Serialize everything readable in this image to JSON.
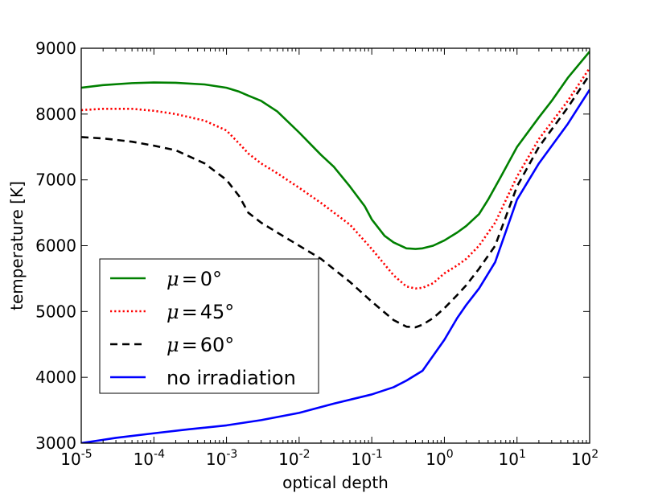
{
  "chart_data": {
    "type": "line",
    "xscale": "log",
    "xlabel": "optical depth",
    "ylabel": "temperature [K]",
    "xlim": [
      1e-05,
      100
    ],
    "ylim": [
      3000,
      9000
    ],
    "x_ticks": [
      {
        "value": 1e-05,
        "base": "10",
        "exp": "-5"
      },
      {
        "value": 0.0001,
        "base": "10",
        "exp": "-4"
      },
      {
        "value": 0.001,
        "base": "10",
        "exp": "-3"
      },
      {
        "value": 0.01,
        "base": "10",
        "exp": "-2"
      },
      {
        "value": 0.1,
        "base": "10",
        "exp": "-1"
      },
      {
        "value": 1,
        "base": "10",
        "exp": "0"
      },
      {
        "value": 10,
        "base": "10",
        "exp": "1"
      },
      {
        "value": 100,
        "base": "10",
        "exp": "2"
      }
    ],
    "y_ticks": [
      {
        "value": 3000,
        "label": "3000"
      },
      {
        "value": 4000,
        "label": "4000"
      },
      {
        "value": 5000,
        "label": "5000"
      },
      {
        "value": 6000,
        "label": "6000"
      },
      {
        "value": 7000,
        "label": "7000"
      },
      {
        "value": 8000,
        "label": "8000"
      },
      {
        "value": 9000,
        "label": "9000"
      }
    ],
    "legend_position": "lower-left",
    "series": [
      {
        "name": "μ = 0°",
        "symbol": "μ",
        "equals": "=",
        "angle": "0°",
        "color": "#008000",
        "style": "solid",
        "points": [
          [
            1e-05,
            8400
          ],
          [
            2e-05,
            8440
          ],
          [
            5e-05,
            8470
          ],
          [
            0.0001,
            8480
          ],
          [
            0.0002,
            8475
          ],
          [
            0.0005,
            8450
          ],
          [
            0.001,
            8400
          ],
          [
            0.0015,
            8340
          ],
          [
            0.002,
            8280
          ],
          [
            0.003,
            8200
          ],
          [
            0.005,
            8040
          ],
          [
            0.01,
            7720
          ],
          [
            0.02,
            7380
          ],
          [
            0.03,
            7200
          ],
          [
            0.05,
            6900
          ],
          [
            0.08,
            6600
          ],
          [
            0.1,
            6400
          ],
          [
            0.15,
            6150
          ],
          [
            0.2,
            6050
          ],
          [
            0.3,
            5960
          ],
          [
            0.4,
            5950
          ],
          [
            0.5,
            5960
          ],
          [
            0.7,
            6000
          ],
          [
            1.0,
            6080
          ],
          [
            1.5,
            6200
          ],
          [
            2,
            6300
          ],
          [
            3,
            6480
          ],
          [
            4,
            6700
          ],
          [
            6,
            7050
          ],
          [
            10,
            7500
          ],
          [
            20,
            7950
          ],
          [
            30,
            8200
          ],
          [
            50,
            8550
          ],
          [
            100,
            8950
          ]
        ]
      },
      {
        "name": "μ = 45°",
        "symbol": "μ",
        "equals": "=",
        "angle": "45°",
        "color": "#ff0000",
        "style": "dotted",
        "points": [
          [
            1e-05,
            8060
          ],
          [
            2e-05,
            8080
          ],
          [
            5e-05,
            8080
          ],
          [
            0.0001,
            8050
          ],
          [
            0.0002,
            8000
          ],
          [
            0.0005,
            7900
          ],
          [
            0.001,
            7750
          ],
          [
            0.0015,
            7550
          ],
          [
            0.002,
            7400
          ],
          [
            0.003,
            7250
          ],
          [
            0.005,
            7100
          ],
          [
            0.01,
            6880
          ],
          [
            0.02,
            6650
          ],
          [
            0.05,
            6320
          ],
          [
            0.1,
            5950
          ],
          [
            0.2,
            5550
          ],
          [
            0.3,
            5380
          ],
          [
            0.4,
            5350
          ],
          [
            0.5,
            5360
          ],
          [
            0.7,
            5430
          ],
          [
            1.0,
            5580
          ],
          [
            1.5,
            5700
          ],
          [
            2,
            5800
          ],
          [
            3,
            6000
          ],
          [
            5,
            6350
          ],
          [
            10,
            7050
          ],
          [
            20,
            7620
          ],
          [
            50,
            8200
          ],
          [
            100,
            8700
          ]
        ]
      },
      {
        "name": "μ = 60°",
        "symbol": "μ",
        "equals": "=",
        "angle": "60°",
        "color": "#000000",
        "style": "dashed",
        "points": [
          [
            1e-05,
            7650
          ],
          [
            2e-05,
            7630
          ],
          [
            5e-05,
            7580
          ],
          [
            0.0001,
            7520
          ],
          [
            0.0002,
            7450
          ],
          [
            0.0005,
            7250
          ],
          [
            0.001,
            7000
          ],
          [
            0.0015,
            6750
          ],
          [
            0.002,
            6500
          ],
          [
            0.003,
            6350
          ],
          [
            0.005,
            6200
          ],
          [
            0.01,
            6000
          ],
          [
            0.02,
            5800
          ],
          [
            0.05,
            5450
          ],
          [
            0.1,
            5150
          ],
          [
            0.2,
            4870
          ],
          [
            0.3,
            4770
          ],
          [
            0.4,
            4760
          ],
          [
            0.5,
            4800
          ],
          [
            0.7,
            4900
          ],
          [
            1.0,
            5050
          ],
          [
            1.5,
            5250
          ],
          [
            2,
            5400
          ],
          [
            3,
            5650
          ],
          [
            5,
            6000
          ],
          [
            10,
            6900
          ],
          [
            20,
            7500
          ],
          [
            50,
            8100
          ],
          [
            100,
            8600
          ]
        ]
      },
      {
        "name": "no irradiation",
        "symbol": "",
        "equals": "",
        "angle": "",
        "color": "#0000ff",
        "style": "solid",
        "points": [
          [
            1e-05,
            3000
          ],
          [
            3e-05,
            3080
          ],
          [
            0.0001,
            3150
          ],
          [
            0.0003,
            3210
          ],
          [
            0.001,
            3270
          ],
          [
            0.003,
            3350
          ],
          [
            0.01,
            3460
          ],
          [
            0.03,
            3600
          ],
          [
            0.1,
            3740
          ],
          [
            0.2,
            3850
          ],
          [
            0.3,
            3950
          ],
          [
            0.5,
            4100
          ],
          [
            1.0,
            4570
          ],
          [
            1.5,
            4900
          ],
          [
            2,
            5100
          ],
          [
            3,
            5350
          ],
          [
            5,
            5750
          ],
          [
            10,
            6700
          ],
          [
            20,
            7250
          ],
          [
            50,
            7850
          ],
          [
            100,
            8370
          ]
        ]
      }
    ]
  }
}
